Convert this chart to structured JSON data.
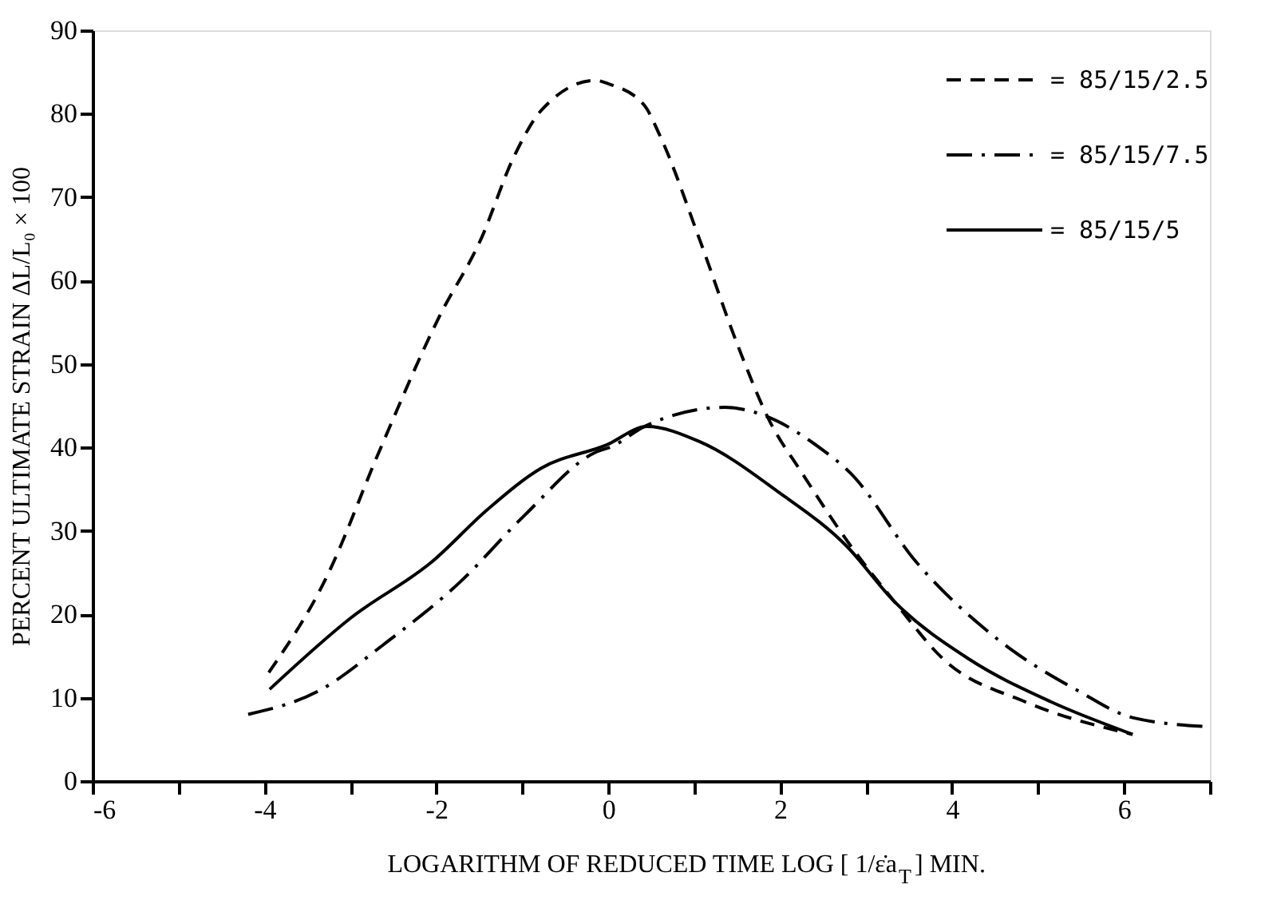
{
  "chart_data": {
    "type": "line",
    "xlabel": "LOGARITHM OF REDUCED TIME LOG [ 1/ε̇a$_{T}$] MIN.",
    "ylabel": "PERCENT ULTIMATE STRAIN ΔL/L₀ × 100",
    "xlim": [
      -6,
      7
    ],
    "ylim": [
      0,
      90
    ],
    "xticks": [
      -6,
      {
        "value": -5,
        "label": null
      },
      -4,
      {
        "value": -3,
        "label": null
      },
      -2,
      {
        "value": -1,
        "label": null
      },
      0,
      {
        "value": 1,
        "label": null
      },
      2,
      {
        "value": 3,
        "label": null
      },
      4,
      {
        "value": 5,
        "label": null
      },
      6,
      {
        "value": 7,
        "label": null
      }
    ],
    "yticks": [
      0,
      10,
      20,
      30,
      40,
      50,
      60,
      70,
      80,
      90
    ],
    "grid": false,
    "legend": "top right",
    "marker": "none",
    "series": [
      {
        "name": "= 85/15/2.5",
        "color": "#000000",
        "line_style": "dashed",
        "x": [
          -3.95,
          -3.28,
          -2.67,
          -1.97,
          -1.48,
          -1.1,
          -0.78,
          -0.15,
          0.0,
          0.42,
          0.6,
          1.06,
          1.5,
          1.88,
          2.25,
          2.82,
          3.33,
          3.9,
          4.85,
          6.1
        ],
        "values": [
          13,
          24.4,
          39.4,
          55.6,
          65,
          74.8,
          80.4,
          84,
          83.6,
          81,
          77.4,
          65,
          52.4,
          43.1,
          37,
          28.2,
          21.5,
          14.6,
          9.5,
          5.6
        ]
      },
      {
        "name": "= 85/15/7.5",
        "color": "#000000",
        "line_style": "dashdot",
        "x": [
          -4.19,
          -3.37,
          -2.61,
          -1.72,
          -0.97,
          -0.15,
          0.04,
          0.42,
          1.36,
          1.82,
          2.44,
          2.82,
          3.58,
          4.53,
          5.47,
          6.1,
          7.0
        ],
        "values": [
          8,
          10.8,
          16.4,
          23.9,
          31.9,
          39.4,
          40.1,
          42.5,
          44.8,
          43.8,
          40.1,
          36.9,
          26.3,
          17,
          10.8,
          7.6,
          6.5
        ]
      },
      {
        "name": "= 85/15/5",
        "color": "#000000",
        "line_style": "solid",
        "x": [
          -3.94,
          -2.99,
          -2.05,
          -1.4,
          -0.78,
          -0.02,
          0.45,
          1.06,
          2.0,
          2.77,
          3.33,
          4.2,
          5.15,
          6.1
        ],
        "values": [
          11,
          19.6,
          26.3,
          32.6,
          37.5,
          40.3,
          42.5,
          40.7,
          34.5,
          28.2,
          21.5,
          14.6,
          9.5,
          5.6
        ]
      }
    ]
  }
}
